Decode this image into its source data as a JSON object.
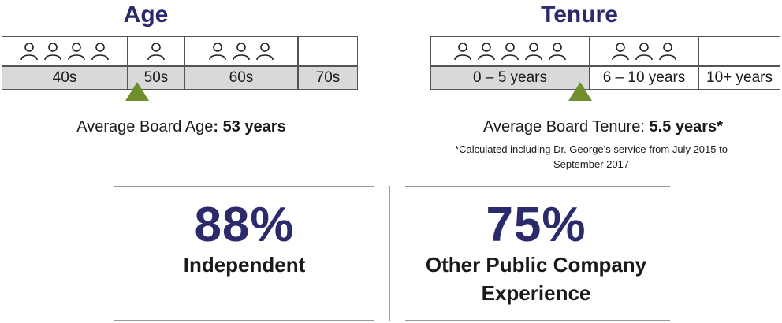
{
  "chart_data": [
    {
      "type": "table",
      "title": "Age",
      "categories": [
        "40s",
        "50s",
        "60s",
        "70s"
      ],
      "values": [
        4,
        1,
        3,
        0
      ],
      "average_text_prefix": "Average Board Age",
      "average_text_value": ": 53 years",
      "marker_at": 53
    },
    {
      "type": "table",
      "title": "Tenure",
      "categories": [
        "0 – 5 years",
        "6 – 10 years",
        "10+ years"
      ],
      "values": [
        5,
        3,
        0
      ],
      "average_text_prefix": "Average Board Tenure: ",
      "average_text_value": "5.5 years*",
      "footnote_line1": "*Calculated including Dr. George’s service from July 2015 to",
      "footnote_line2": "September 2017",
      "marker_at": 5.5
    }
  ],
  "stats": [
    {
      "value": "88%",
      "label_line1": "Independent",
      "label_line2": ""
    },
    {
      "value": "75%",
      "label_line1": "Other Public Company",
      "label_line2": "Experience"
    }
  ],
  "colors": {
    "heading": "#2b2a6b",
    "marker": "#6f8f2f",
    "label_bg": "#d9d9d9"
  }
}
